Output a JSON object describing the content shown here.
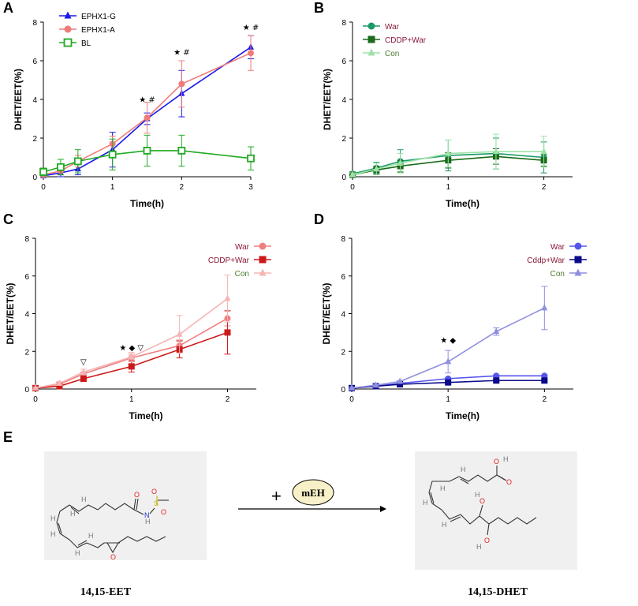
{
  "chart_data": [
    {
      "id": "A",
      "panel_label": "A",
      "type": "line",
      "title": "",
      "xlabel": "Time(h)",
      "ylabel": "DHET/EET(%)",
      "xlim": [
        0,
        3
      ],
      "ylim": [
        0,
        8
      ],
      "xticks": [
        0,
        1,
        2,
        3
      ],
      "yticks": [
        0,
        2,
        4,
        6,
        8
      ],
      "legend_position": "top-left",
      "series": [
        {
          "name": "EPHX1-G",
          "color": "#1a1ae6",
          "marker": "triangle",
          "x": [
            0,
            0.25,
            0.5,
            1,
            1.5,
            2,
            3
          ],
          "y": [
            0.05,
            0.2,
            0.4,
            1.4,
            3.0,
            4.3,
            6.7
          ],
          "err": [
            0.1,
            0.2,
            0.3,
            0.9,
            0.3,
            1.2,
            0.6
          ]
        },
        {
          "name": "EPHX1-A",
          "color": "#ef7b7b",
          "marker": "circle",
          "x": [
            0,
            0.25,
            0.5,
            1,
            1.5,
            2,
            3
          ],
          "y": [
            0.1,
            0.3,
            0.8,
            1.7,
            3.05,
            4.8,
            6.4
          ],
          "err": [
            0.1,
            0.2,
            0.3,
            0.4,
            0.8,
            1.2,
            0.9
          ]
        },
        {
          "name": "BL",
          "color": "#22aa22",
          "marker": "square-open",
          "x": [
            0,
            0.25,
            0.5,
            1,
            1.5,
            2,
            3
          ],
          "y": [
            0.25,
            0.5,
            0.8,
            1.15,
            1.35,
            1.35,
            0.95
          ],
          "err": [
            0.2,
            0.4,
            0.6,
            0.8,
            0.8,
            0.8,
            0.6
          ]
        }
      ],
      "annotations": [
        {
          "x": 1.5,
          "y": 3.85,
          "text": "★ #"
        },
        {
          "x": 2,
          "y": 6.3,
          "text": "★ #"
        },
        {
          "x": 3,
          "y": 7.6,
          "text": "★ #"
        }
      ]
    },
    {
      "id": "B",
      "panel_label": "B",
      "type": "line",
      "title": "",
      "xlabel": "Time(h)",
      "ylabel": "DHET/EET(%)",
      "xlim": [
        0,
        2.3
      ],
      "ylim": [
        0,
        8
      ],
      "xticks": [
        0,
        1,
        2
      ],
      "yticks": [
        0,
        2,
        4,
        6,
        8
      ],
      "legend_position": "top-left",
      "series": [
        {
          "name": "War",
          "color": "#1a9a66",
          "marker": "circle",
          "x": [
            0,
            0.25,
            0.5,
            1,
            1.5,
            2
          ],
          "y": [
            0.15,
            0.45,
            0.8,
            1.1,
            1.2,
            1.0
          ],
          "err": [
            0.1,
            0.3,
            0.6,
            0.8,
            0.8,
            0.8
          ]
        },
        {
          "name": "CDDP+War",
          "color": "#1a6b1a",
          "marker": "square",
          "x": [
            0,
            0.25,
            0.5,
            1,
            1.5,
            2
          ],
          "y": [
            0.1,
            0.35,
            0.55,
            0.85,
            1.05,
            0.85
          ],
          "err": [
            0.1,
            0.2,
            0.3,
            0.4,
            0.4,
            0.3
          ]
        },
        {
          "name": "Con",
          "color": "#9fe2a8",
          "marker": "triangle",
          "x": [
            0,
            0.25,
            0.5,
            1,
            1.5,
            2
          ],
          "y": [
            0.1,
            0.4,
            0.7,
            1.2,
            1.3,
            1.3
          ],
          "err": [
            0.1,
            0.3,
            0.5,
            0.7,
            0.9,
            0.8
          ]
        }
      ],
      "annotations": []
    },
    {
      "id": "C",
      "panel_label": "C",
      "type": "line",
      "title": "",
      "xlabel": "Time(h)",
      "ylabel": "DHET/EET(%)",
      "xlim": [
        0,
        2.3
      ],
      "ylim": [
        0,
        8
      ],
      "xticks": [
        0,
        1,
        2
      ],
      "yticks": [
        0,
        2,
        4,
        6,
        8
      ],
      "legend_position": "top-right",
      "series": [
        {
          "name": "War",
          "color": "#f08080",
          "marker": "circle",
          "x": [
            0,
            0.25,
            0.5,
            1,
            1.5,
            2
          ],
          "y": [
            0.05,
            0.25,
            0.8,
            1.65,
            2.3,
            3.75
          ],
          "err": [
            0.05,
            0.1,
            0.1,
            0.2,
            0.3,
            0.4
          ]
        },
        {
          "name": "CDDP+War",
          "color": "#cc1a1a",
          "marker": "square",
          "x": [
            0,
            0.25,
            0.5,
            1,
            1.5,
            2
          ],
          "y": [
            0.05,
            0.15,
            0.55,
            1.2,
            2.1,
            3.0
          ],
          "err": [
            0.05,
            0.1,
            0.15,
            0.3,
            0.45,
            1.15
          ]
        },
        {
          "name": "Con",
          "color": "#f5b5b5",
          "marker": "triangle",
          "x": [
            0,
            0.25,
            0.5,
            1,
            1.5,
            2
          ],
          "y": [
            0.05,
            0.3,
            0.9,
            1.7,
            2.9,
            4.8
          ],
          "err": [
            0.05,
            0.1,
            0.15,
            0.25,
            1.0,
            1.25
          ]
        }
      ],
      "annotations": [
        {
          "x": 0.5,
          "y": 1.3,
          "text": "▽"
        },
        {
          "x": 1,
          "y": 2.05,
          "text": "★ ◆ ▽"
        }
      ]
    },
    {
      "id": "D",
      "panel_label": "D",
      "type": "line",
      "title": "",
      "xlabel": "Time(h)",
      "ylabel": "DHET/EET(%)",
      "xlim": [
        0,
        2.3
      ],
      "ylim": [
        0,
        8
      ],
      "xticks": [
        0,
        1,
        2
      ],
      "yticks": [
        0,
        2,
        4,
        6,
        8
      ],
      "legend_position": "top-right",
      "series": [
        {
          "name": "War",
          "color": "#5555ee",
          "marker": "circle",
          "x": [
            0,
            0.25,
            0.5,
            1,
            1.5,
            2
          ],
          "y": [
            0.05,
            0.15,
            0.3,
            0.55,
            0.7,
            0.7
          ],
          "err": [
            0.05,
            0.05,
            0.05,
            0.05,
            0.05,
            0.05
          ]
        },
        {
          "name": "Cddp+War",
          "color": "#0a0a8a",
          "marker": "square",
          "x": [
            0,
            0.25,
            0.5,
            1,
            1.5,
            2
          ],
          "y": [
            0.05,
            0.15,
            0.25,
            0.35,
            0.45,
            0.45
          ],
          "err": [
            0.05,
            0.05,
            0.05,
            0.05,
            0.05,
            0.05
          ]
        },
        {
          "name": "Con",
          "color": "#8f8fe0",
          "marker": "triangle",
          "x": [
            0,
            0.25,
            0.5,
            1,
            1.5,
            2
          ],
          "y": [
            0.05,
            0.2,
            0.4,
            1.45,
            3.05,
            4.3
          ],
          "err": [
            0.05,
            0.05,
            0.05,
            0.6,
            0.2,
            1.15
          ]
        }
      ],
      "annotations": [
        {
          "x": 1,
          "y": 2.45,
          "text": "★ ◆"
        }
      ]
    }
  ],
  "panel_e": {
    "label": "E",
    "substrate": "14,15-EET",
    "product": "14,15-DHET",
    "plus": "+",
    "enzyme": "mEH"
  },
  "atoms": {
    "O": "O",
    "H": "H",
    "N": "N",
    "S": "S"
  },
  "colors": {
    "axis": "#000000",
    "oxygen": "#e32222",
    "nitrogen": "#2233cc",
    "sulfur": "#c8b400",
    "hydrogen": "#777777",
    "bond": "#333333",
    "enzyme_fill": "#f8f0c8",
    "molecule_bg": "#f0f0f0"
  }
}
